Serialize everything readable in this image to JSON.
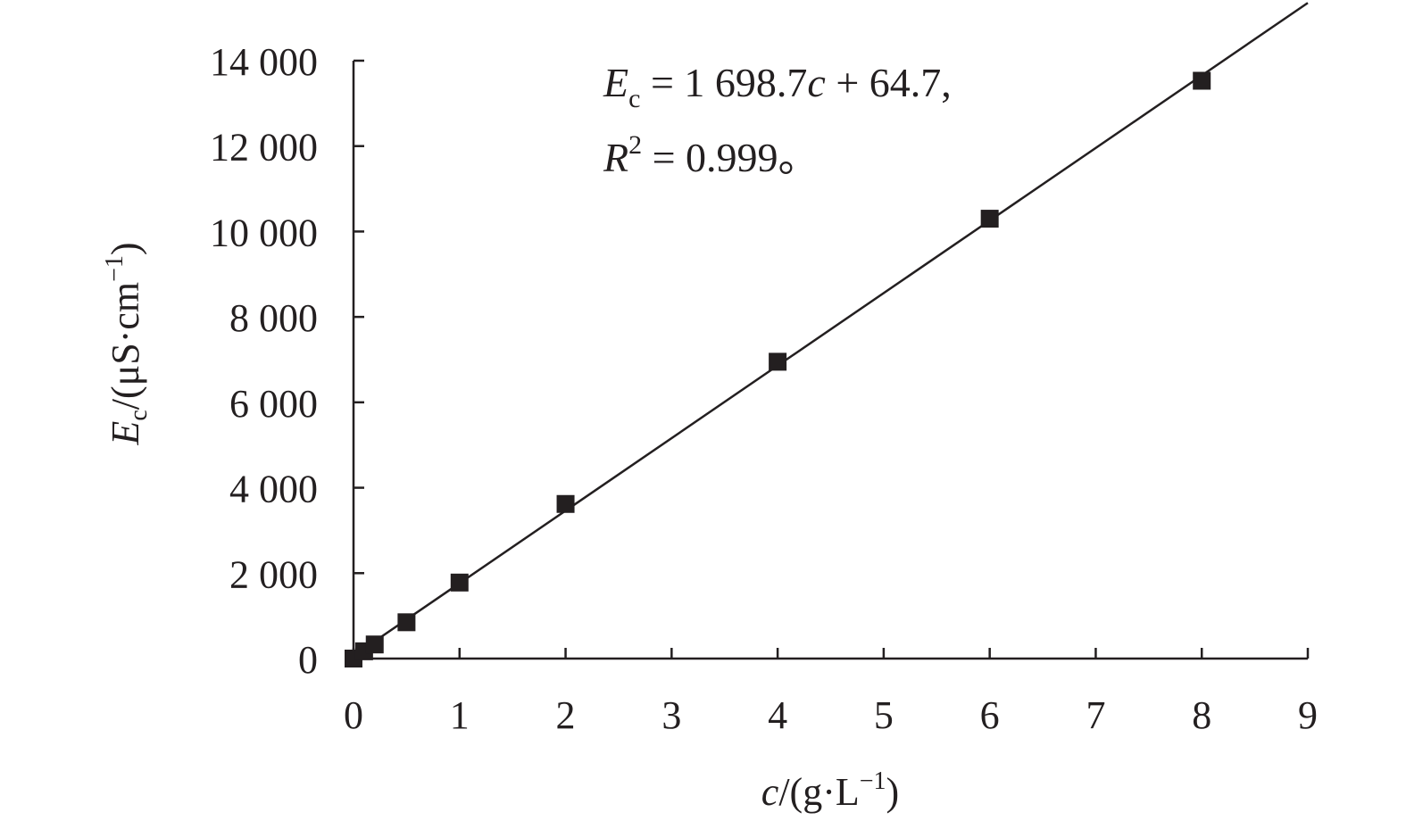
{
  "chart_data": {
    "type": "scatter",
    "xlabel": {
      "var": "c",
      "rest": "/(g·L",
      "sup": "−1",
      "close": ")"
    },
    "ylabel": {
      "var": "E",
      "sub": "c",
      "rest": "/(μS·cm",
      "sup": "−1",
      "close": ")"
    },
    "xlim": [
      0,
      9
    ],
    "ylim": [
      0,
      14000
    ],
    "x_ticks": [
      0,
      1,
      2,
      3,
      4,
      5,
      6,
      7,
      8,
      9
    ],
    "x_tick_labels": [
      "0",
      "1",
      "2",
      "3",
      "4",
      "5",
      "6",
      "7",
      "8",
      "9"
    ],
    "y_ticks": [
      0,
      2000,
      4000,
      6000,
      8000,
      10000,
      12000,
      14000
    ],
    "y_tick_labels": [
      "0",
      "2 000",
      "4 000",
      "6 000",
      "8 000",
      "10 000",
      "12 000",
      "14 000"
    ],
    "grid": false,
    "series": [
      {
        "type": "scatter",
        "marker": "square",
        "color": "#231f20",
        "points": [
          {
            "x": 0,
            "y": 0
          },
          {
            "x": 0.1,
            "y": 170
          },
          {
            "x": 0.2,
            "y": 330
          },
          {
            "x": 0.5,
            "y": 850
          },
          {
            "x": 1,
            "y": 1780
          },
          {
            "x": 2,
            "y": 3620
          },
          {
            "x": 4,
            "y": 6950
          },
          {
            "x": 6,
            "y": 10300
          },
          {
            "x": 8,
            "y": 13530
          }
        ]
      }
    ],
    "fit": {
      "type": "linear",
      "slope": 1698.7,
      "intercept": 64.7,
      "r2": 0.999,
      "x_range": [
        0,
        9
      ]
    },
    "annotation": {
      "line1": {
        "var": "E",
        "sub": "c",
        "mid": " = 1 698.7",
        "var2": "c",
        "end": " + 64.7,"
      },
      "line2": {
        "var": "R",
        "sup": "2",
        "end": " = 0.999。"
      }
    }
  }
}
